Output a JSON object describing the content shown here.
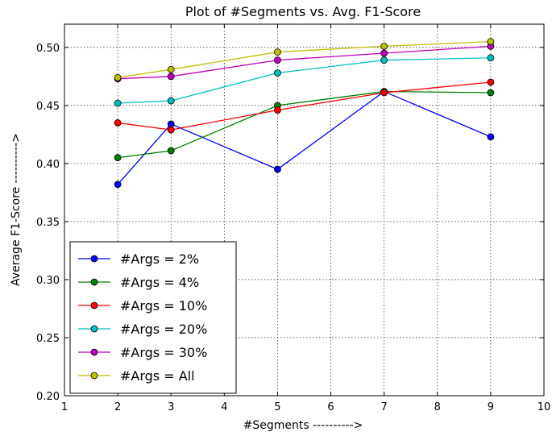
{
  "chart_data": {
    "type": "line",
    "title": "Plot of #Segments vs. Avg. F1-Score",
    "xlabel": "#Segments ---------->",
    "ylabel": "Average F1-Score ---------->",
    "xlim": [
      1,
      10
    ],
    "ylim": [
      0.2,
      0.52
    ],
    "xticks": [
      "1",
      "2",
      "3",
      "4",
      "5",
      "6",
      "7",
      "8",
      "9",
      "10"
    ],
    "yticks": [
      "0.20",
      "0.25",
      "0.30",
      "0.35",
      "0.40",
      "0.45",
      "0.50"
    ],
    "grid": true,
    "legend_position": "lower-left",
    "x": [
      2,
      3,
      5,
      7,
      9
    ],
    "series": [
      {
        "name": "#Args = 2%",
        "color": "#0000ff",
        "values": [
          0.382,
          0.434,
          0.395,
          0.462,
          0.423
        ]
      },
      {
        "name": "#Args = 4%",
        "color": "#007f00",
        "values": [
          0.405,
          0.411,
          0.45,
          0.462,
          0.461
        ]
      },
      {
        "name": "#Args = 10%",
        "color": "#ff0000",
        "values": [
          0.435,
          0.429,
          0.446,
          0.461,
          0.47
        ]
      },
      {
        "name": "#Args = 20%",
        "color": "#00bfbf",
        "values": [
          0.452,
          0.454,
          0.478,
          0.489,
          0.491
        ]
      },
      {
        "name": "#Args = 30%",
        "color": "#bf00bf",
        "values": [
          0.473,
          0.475,
          0.489,
          0.495,
          0.501
        ]
      },
      {
        "name": "#Args = All",
        "color": "#bfbf00",
        "values": [
          0.474,
          0.481,
          0.496,
          0.501,
          0.505
        ]
      }
    ]
  }
}
